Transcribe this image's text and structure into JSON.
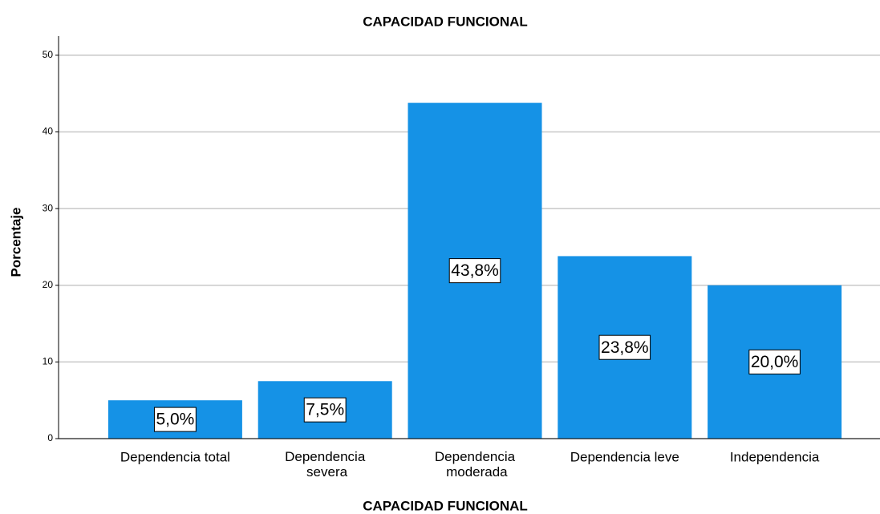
{
  "chart_data": {
    "type": "bar",
    "title": "CAPACIDAD FUNCIONAL",
    "x_label": "CAPACIDAD FUNCIONAL",
    "y_label": "Porcentaje",
    "categories": [
      "Dependencia total",
      "Dependencia severa",
      "Dependencia moderada",
      "Dependencia leve",
      "Independencia"
    ],
    "values": [
      5.0,
      7.5,
      43.8,
      23.8,
      20.0
    ],
    "value_labels": [
      "5,0%",
      "7,5%",
      "43,8%",
      "23,8%",
      "20,0%"
    ],
    "color": "#1592e6",
    "ylim": [
      0,
      52.5
    ],
    "yticks": [
      0,
      10,
      20,
      30,
      40,
      50
    ],
    "grid": true
  }
}
